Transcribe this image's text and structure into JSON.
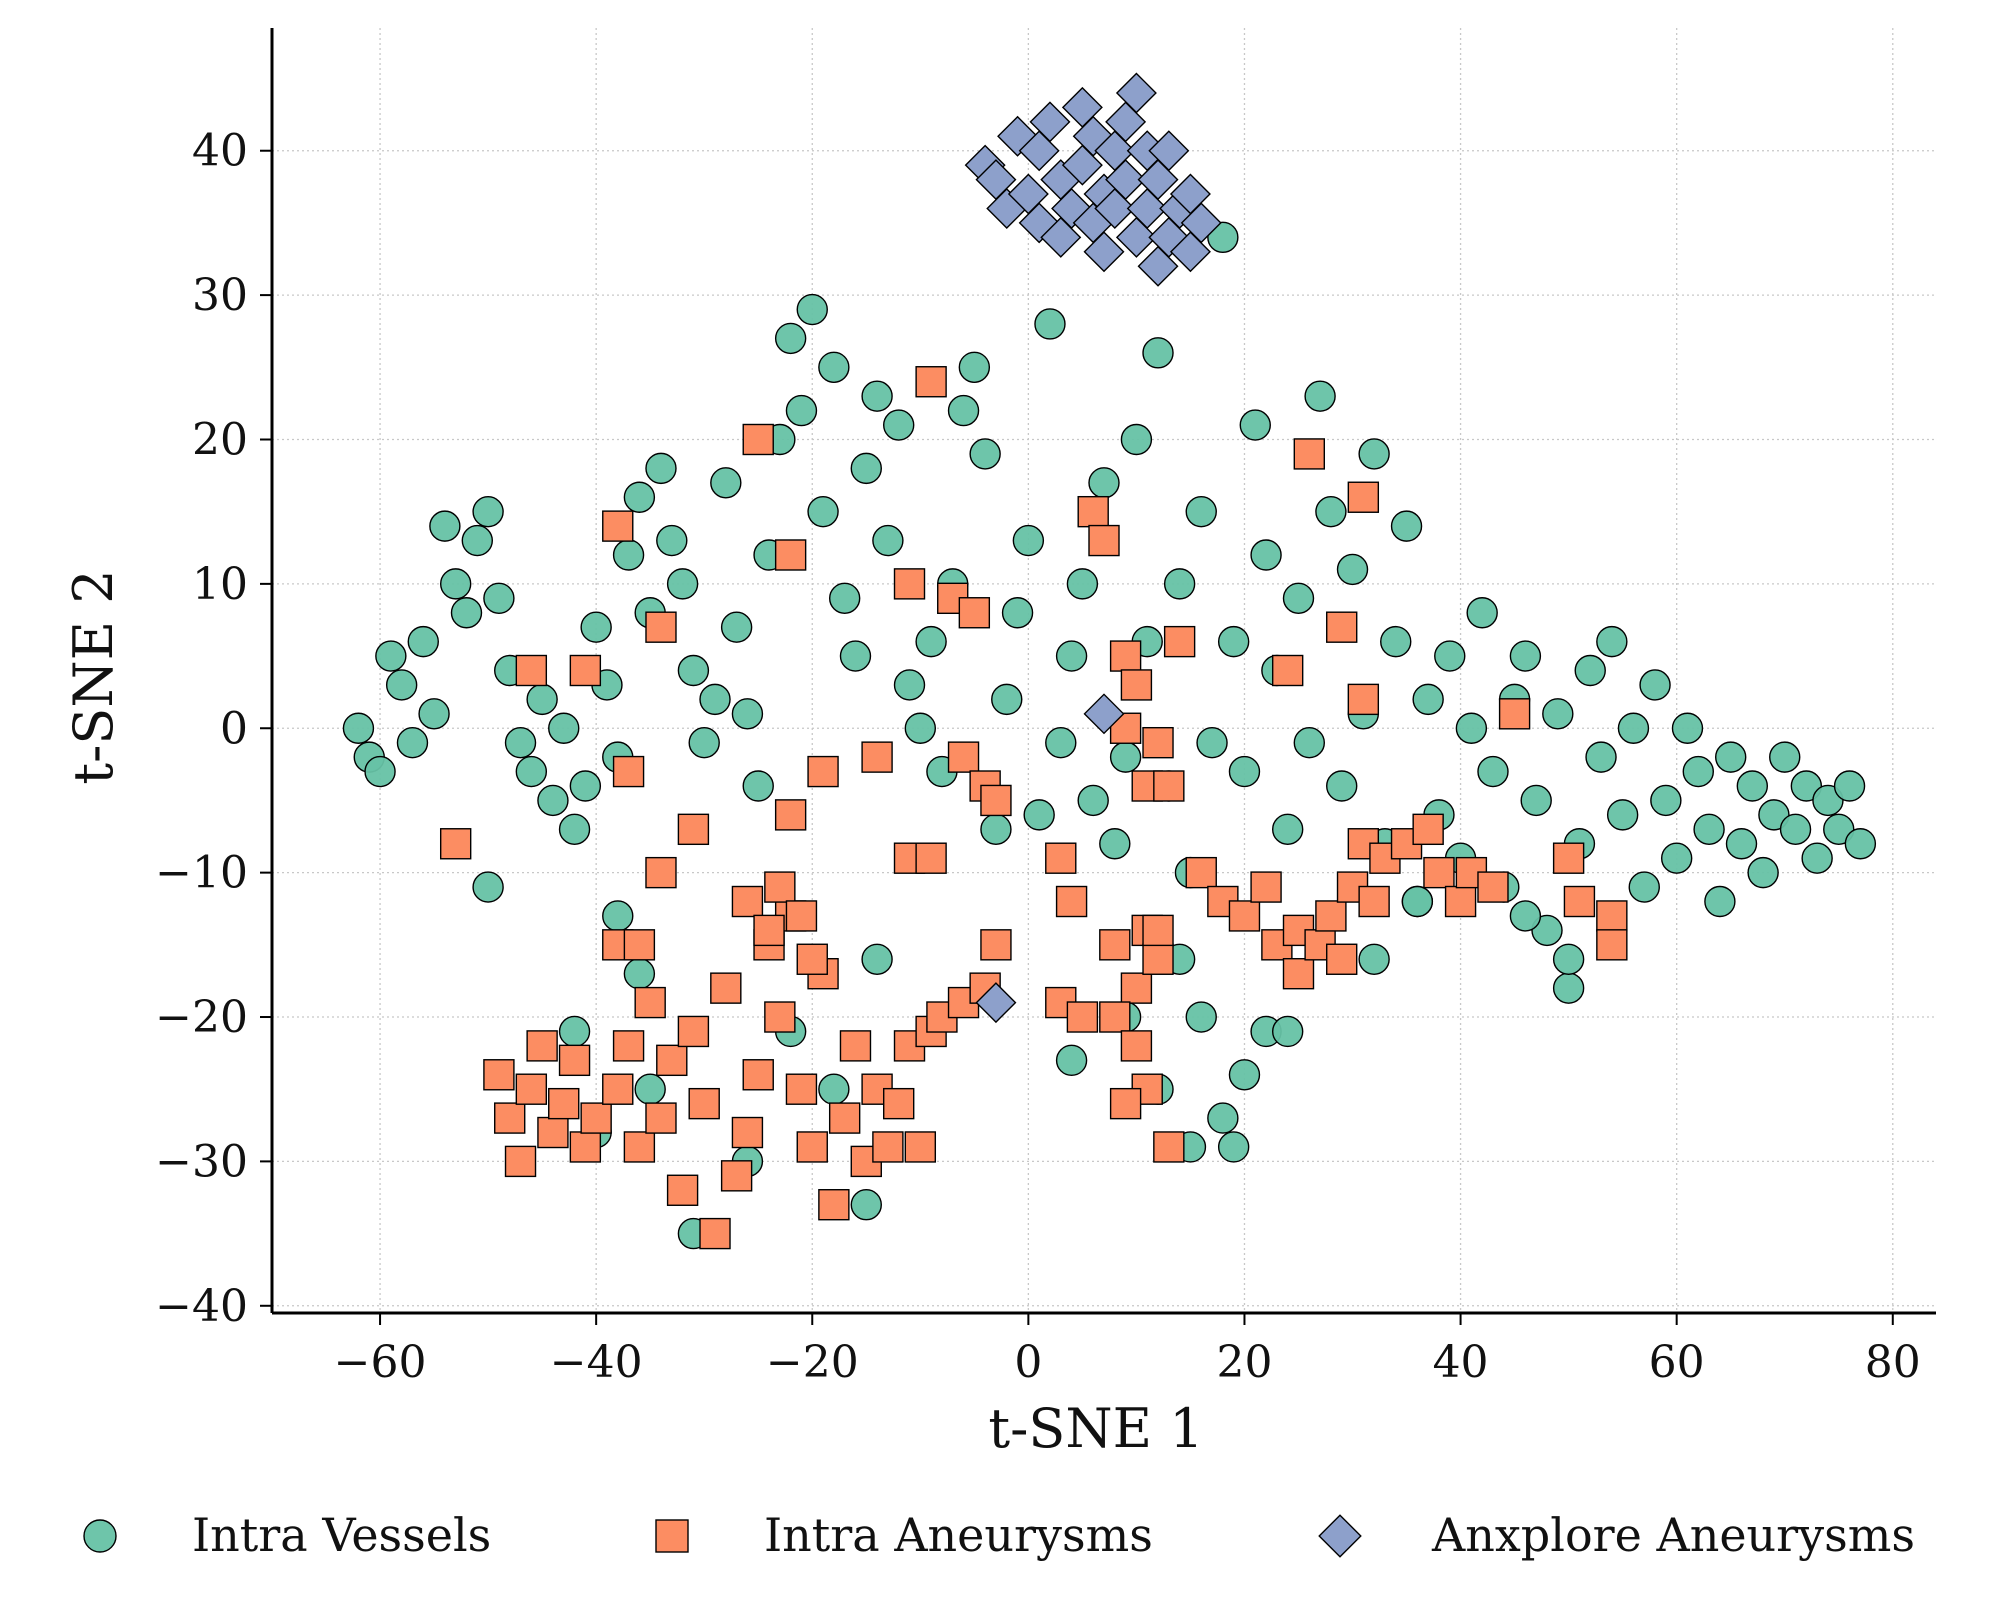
{
  "chart_data": {
    "type": "scatter",
    "xlabel": "t-SNE 1",
    "ylabel": "t-SNE 2",
    "xlim": [
      -70,
      84
    ],
    "ylim": [
      -40.5,
      48.5
    ],
    "xticks": [
      -60,
      -40,
      -20,
      0,
      20,
      40,
      60,
      80
    ],
    "yticks": [
      -40,
      -30,
      -20,
      -10,
      0,
      10,
      20,
      30,
      40
    ],
    "xtick_labels": [
      "−60",
      "−40",
      "−20",
      "0",
      "20",
      "40",
      "60",
      "80"
    ],
    "ytick_labels": [
      "−40",
      "−30",
      "−20",
      "−10",
      "0",
      "10",
      "20",
      "30",
      "40"
    ],
    "grid": true,
    "legend_position": "bottom",
    "series": [
      {
        "name": "Intra Vessels",
        "marker": "circle",
        "color": "#66c2a5",
        "points": [
          [
            -62,
            0
          ],
          [
            -61,
            -2
          ],
          [
            -60,
            -3
          ],
          [
            -59,
            5
          ],
          [
            -58,
            3
          ],
          [
            -57,
            -1
          ],
          [
            -56,
            6
          ],
          [
            -55,
            1
          ],
          [
            -54,
            14
          ],
          [
            -53,
            10
          ],
          [
            -52,
            8
          ],
          [
            -51,
            13
          ],
          [
            -50,
            15
          ],
          [
            -49,
            9
          ],
          [
            -48,
            4
          ],
          [
            -47,
            -1
          ],
          [
            -46,
            -3
          ],
          [
            -45,
            2
          ],
          [
            -44,
            -5
          ],
          [
            -43,
            0
          ],
          [
            -42,
            -7
          ],
          [
            -41,
            -4
          ],
          [
            -40,
            7
          ],
          [
            -39,
            3
          ],
          [
            -38,
            -2
          ],
          [
            -37,
            12
          ],
          [
            -36,
            16
          ],
          [
            -35,
            8
          ],
          [
            -34,
            18
          ],
          [
            -33,
            13
          ],
          [
            -32,
            10
          ],
          [
            -31,
            4
          ],
          [
            -30,
            -1
          ],
          [
            -29,
            2
          ],
          [
            -28,
            17
          ],
          [
            -27,
            7
          ],
          [
            -26,
            1
          ],
          [
            -25,
            -4
          ],
          [
            -24,
            12
          ],
          [
            -23,
            20
          ],
          [
            -22,
            27
          ],
          [
            -21,
            22
          ],
          [
            -20,
            29
          ],
          [
            -19,
            15
          ],
          [
            -18,
            25
          ],
          [
            -17,
            9
          ],
          [
            -16,
            5
          ],
          [
            -15,
            18
          ],
          [
            -14,
            23
          ],
          [
            -13,
            13
          ],
          [
            -12,
            21
          ],
          [
            -11,
            3
          ],
          [
            -10,
            0
          ],
          [
            -9,
            6
          ],
          [
            -8,
            -3
          ],
          [
            -7,
            10
          ],
          [
            -6,
            22
          ],
          [
            -5,
            25
          ],
          [
            -4,
            19
          ],
          [
            -3,
            -7
          ],
          [
            -2,
            2
          ],
          [
            -1,
            8
          ],
          [
            0,
            13
          ],
          [
            1,
            -6
          ],
          [
            2,
            28
          ],
          [
            3,
            -1
          ],
          [
            4,
            5
          ],
          [
            5,
            10
          ],
          [
            6,
            -5
          ],
          [
            7,
            17
          ],
          [
            8,
            -8
          ],
          [
            9,
            -2
          ],
          [
            10,
            20
          ],
          [
            11,
            6
          ],
          [
            12,
            26
          ],
          [
            13,
            -4
          ],
          [
            14,
            10
          ],
          [
            15,
            -10
          ],
          [
            16,
            15
          ],
          [
            17,
            -1
          ],
          [
            18,
            34
          ],
          [
            19,
            6
          ],
          [
            20,
            -3
          ],
          [
            21,
            21
          ],
          [
            22,
            12
          ],
          [
            23,
            4
          ],
          [
            24,
            -7
          ],
          [
            25,
            9
          ],
          [
            26,
            -1
          ],
          [
            27,
            23
          ],
          [
            28,
            15
          ],
          [
            29,
            -4
          ],
          [
            30,
            11
          ],
          [
            31,
            1
          ],
          [
            32,
            19
          ],
          [
            33,
            -8
          ],
          [
            34,
            6
          ],
          [
            35,
            14
          ],
          [
            36,
            -12
          ],
          [
            37,
            2
          ],
          [
            38,
            -6
          ],
          [
            39,
            5
          ],
          [
            40,
            -9
          ],
          [
            41,
            0
          ],
          [
            42,
            8
          ],
          [
            43,
            -3
          ],
          [
            44,
            -11
          ],
          [
            45,
            2
          ],
          [
            46,
            5
          ],
          [
            47,
            -5
          ],
          [
            48,
            -14
          ],
          [
            49,
            1
          ],
          [
            50,
            -18
          ],
          [
            51,
            -8
          ],
          [
            52,
            4
          ],
          [
            53,
            -2
          ],
          [
            54,
            6
          ],
          [
            55,
            -6
          ],
          [
            56,
            0
          ],
          [
            57,
            -11
          ],
          [
            58,
            3
          ],
          [
            59,
            -5
          ],
          [
            60,
            -9
          ],
          [
            61,
            0
          ],
          [
            62,
            -3
          ],
          [
            63,
            -7
          ],
          [
            64,
            -12
          ],
          [
            65,
            -2
          ],
          [
            66,
            -8
          ],
          [
            67,
            -4
          ],
          [
            68,
            -10
          ],
          [
            69,
            -6
          ],
          [
            70,
            -2
          ],
          [
            71,
            -7
          ],
          [
            72,
            -4
          ],
          [
            73,
            -9
          ],
          [
            74,
            -5
          ],
          [
            75,
            -7
          ],
          [
            76,
            -4
          ],
          [
            77,
            -8
          ],
          [
            -50,
            -11
          ],
          [
            -38,
            -13
          ],
          [
            -36,
            -17
          ],
          [
            -22,
            -21
          ],
          [
            -14,
            -16
          ],
          [
            -15,
            -33
          ],
          [
            -18,
            -25
          ],
          [
            -42,
            -21
          ],
          [
            -40,
            -28
          ],
          [
            -31,
            -35
          ],
          [
            -26,
            -30
          ],
          [
            -35,
            -25
          ],
          [
            4,
            -23
          ],
          [
            9,
            -20
          ],
          [
            12,
            -25
          ],
          [
            15,
            -29
          ],
          [
            18,
            -27
          ],
          [
            20,
            -24
          ],
          [
            22,
            -21
          ],
          [
            14,
            -16
          ],
          [
            16,
            -20
          ],
          [
            19,
            -29
          ],
          [
            24,
            -21
          ],
          [
            32,
            -16
          ],
          [
            36,
            -12
          ],
          [
            50,
            -16
          ],
          [
            46,
            -13
          ]
        ]
      },
      {
        "name": "Intra Aneurysms",
        "marker": "square",
        "color": "#fc8d62",
        "points": [
          [
            -49,
            -24
          ],
          [
            -48,
            -27
          ],
          [
            -47,
            -30
          ],
          [
            -46,
            -25
          ],
          [
            -45,
            -22
          ],
          [
            -44,
            -28
          ],
          [
            -43,
            -26
          ],
          [
            -42,
            -23
          ],
          [
            -41,
            -29
          ],
          [
            -40,
            -27
          ],
          [
            -38,
            -25
          ],
          [
            -37,
            -22
          ],
          [
            -36,
            -29
          ],
          [
            -35,
            -19
          ],
          [
            -34,
            -27
          ],
          [
            -33,
            -23
          ],
          [
            -32,
            -32
          ],
          [
            -31,
            -21
          ],
          [
            -30,
            -26
          ],
          [
            -29,
            -35
          ],
          [
            -28,
            -18
          ],
          [
            -27,
            -31
          ],
          [
            -26,
            -28
          ],
          [
            -25,
            -24
          ],
          [
            -24,
            -15
          ],
          [
            -23,
            -20
          ],
          [
            -22,
            -13
          ],
          [
            -21,
            -25
          ],
          [
            -20,
            -29
          ],
          [
            -19,
            -17
          ],
          [
            -18,
            -33
          ],
          [
            -17,
            -27
          ],
          [
            -16,
            -22
          ],
          [
            -15,
            -30
          ],
          [
            -14,
            -25
          ],
          [
            -13,
            -29
          ],
          [
            -12,
            -26
          ],
          [
            -11,
            -22
          ],
          [
            -10,
            -29
          ],
          [
            -9,
            -21
          ],
          [
            -8,
            -20
          ],
          [
            -6,
            -19
          ],
          [
            -4,
            -18
          ],
          [
            -26,
            -12
          ],
          [
            -24,
            -14
          ],
          [
            -23,
            -11
          ],
          [
            -21,
            -13
          ],
          [
            -20,
            -16
          ],
          [
            -38,
            -15
          ],
          [
            -36,
            -15
          ],
          [
            -34,
            -10
          ],
          [
            -31,
            -7
          ],
          [
            -37,
            -3
          ],
          [
            -34,
            7
          ],
          [
            -38,
            14
          ],
          [
            -46,
            4
          ],
          [
            -41,
            4
          ],
          [
            -53,
            -8
          ],
          [
            -25,
            20
          ],
          [
            -22,
            12
          ],
          [
            -9,
            24
          ],
          [
            -11,
            10
          ],
          [
            -7,
            9
          ],
          [
            -5,
            8
          ],
          [
            -19,
            -3
          ],
          [
            -22,
            -6
          ],
          [
            -14,
            -2
          ],
          [
            -11,
            -9
          ],
          [
            -9,
            -9
          ],
          [
            -6,
            -2
          ],
          [
            -4,
            -4
          ],
          [
            -3,
            -5
          ],
          [
            -3,
            -15
          ],
          [
            3,
            -9
          ],
          [
            4,
            -12
          ],
          [
            3,
            -19
          ],
          [
            5,
            -20
          ],
          [
            6,
            15
          ],
          [
            7,
            13
          ],
          [
            9,
            5
          ],
          [
            10,
            3
          ],
          [
            9,
            0
          ],
          [
            12,
            -1
          ],
          [
            11,
            -4
          ],
          [
            13,
            -4
          ],
          [
            14,
            6
          ],
          [
            8,
            -15
          ],
          [
            10,
            -18
          ],
          [
            11,
            -14
          ],
          [
            12,
            -16
          ],
          [
            8,
            -20
          ],
          [
            10,
            -22
          ],
          [
            11,
            -25
          ],
          [
            9,
            -26
          ],
          [
            13,
            -29
          ],
          [
            12,
            -14
          ],
          [
            16,
            -10
          ],
          [
            18,
            -12
          ],
          [
            20,
            -13
          ],
          [
            22,
            -11
          ],
          [
            23,
            -15
          ],
          [
            25,
            -14
          ],
          [
            25,
            -17
          ],
          [
            27,
            -15
          ],
          [
            28,
            -13
          ],
          [
            29,
            -16
          ],
          [
            30,
            -11
          ],
          [
            31,
            -8
          ],
          [
            32,
            -12
          ],
          [
            33,
            -9
          ],
          [
            35,
            -8
          ],
          [
            37,
            -7
          ],
          [
            38,
            -10
          ],
          [
            40,
            -12
          ],
          [
            41,
            -10
          ],
          [
            43,
            -11
          ],
          [
            26,
            19
          ],
          [
            31,
            16
          ],
          [
            29,
            7
          ],
          [
            31,
            2
          ],
          [
            24,
            4
          ],
          [
            45,
            1
          ],
          [
            50,
            -9
          ],
          [
            51,
            -12
          ],
          [
            54,
            -13
          ],
          [
            54,
            -15
          ]
        ]
      },
      {
        "name": "Anxplore Aneurysms",
        "marker": "diamond",
        "color": "#8da0cb",
        "points": [
          [
            -4,
            39
          ],
          [
            -3,
            38
          ],
          [
            -2,
            36
          ],
          [
            -1,
            41
          ],
          [
            0,
            37
          ],
          [
            1,
            35
          ],
          [
            1,
            40
          ],
          [
            2,
            42
          ],
          [
            3,
            38
          ],
          [
            3,
            34
          ],
          [
            4,
            36
          ],
          [
            5,
            43
          ],
          [
            5,
            39
          ],
          [
            6,
            41
          ],
          [
            6,
            35
          ],
          [
            7,
            37
          ],
          [
            7,
            33
          ],
          [
            8,
            40
          ],
          [
            8,
            36
          ],
          [
            9,
            42
          ],
          [
            9,
            38
          ],
          [
            10,
            34
          ],
          [
            10,
            44
          ],
          [
            11,
            40
          ],
          [
            11,
            36
          ],
          [
            12,
            32
          ],
          [
            12,
            38
          ],
          [
            13,
            34
          ],
          [
            13,
            40
          ],
          [
            14,
            36
          ],
          [
            15,
            33
          ],
          [
            15,
            37
          ],
          [
            16,
            35
          ],
          [
            -3,
            -19
          ],
          [
            7,
            1
          ]
        ]
      }
    ]
  }
}
